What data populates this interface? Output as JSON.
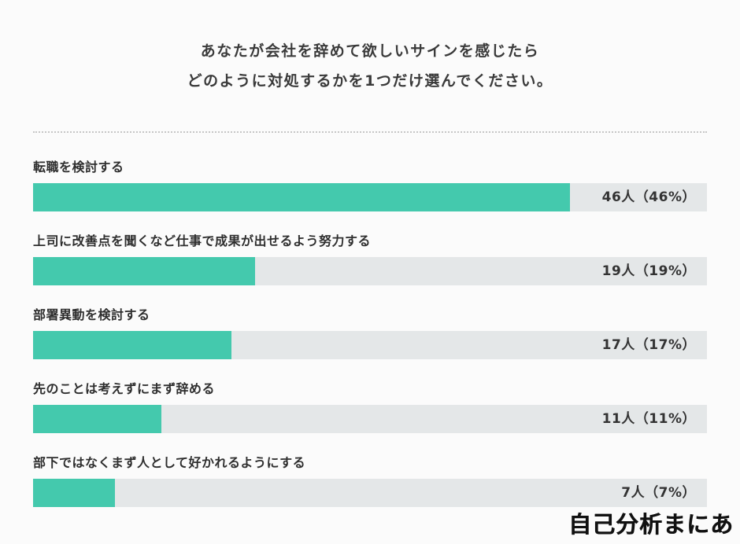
{
  "title": {
    "line1": "あなたが会社を辞めて欲しいサインを感じたら",
    "line2": "どのように対処するかを1つだけ選んでください。"
  },
  "chart_data": {
    "type": "bar",
    "orientation": "horizontal",
    "title": "あなたが会社を辞めて欲しいサインを感じたらどのように対処するかを1つだけ選んでください。",
    "categories": [
      "転職を検討する",
      "上司に改善点を聞くなど仕事で成果が出せるよう努力する",
      "部署異動を検討する",
      "先のことは考えずにまず辞める",
      "部下ではなくまず人として好かれるようにする"
    ],
    "values": [
      46,
      19,
      17,
      11,
      7
    ],
    "value_labels": [
      "46人（46%）",
      "19人（19%）",
      "17人（17%）",
      "11人（11%）",
      "7人（7%）"
    ],
    "unit": "人",
    "max_value": 46,
    "max_bar_fraction": 0.7965,
    "bar_color": "#44c9ad",
    "track_color": "#e4e7e8",
    "grid": false,
    "legend": false
  },
  "footer": {
    "logo_text": "自己分析まにあ"
  }
}
